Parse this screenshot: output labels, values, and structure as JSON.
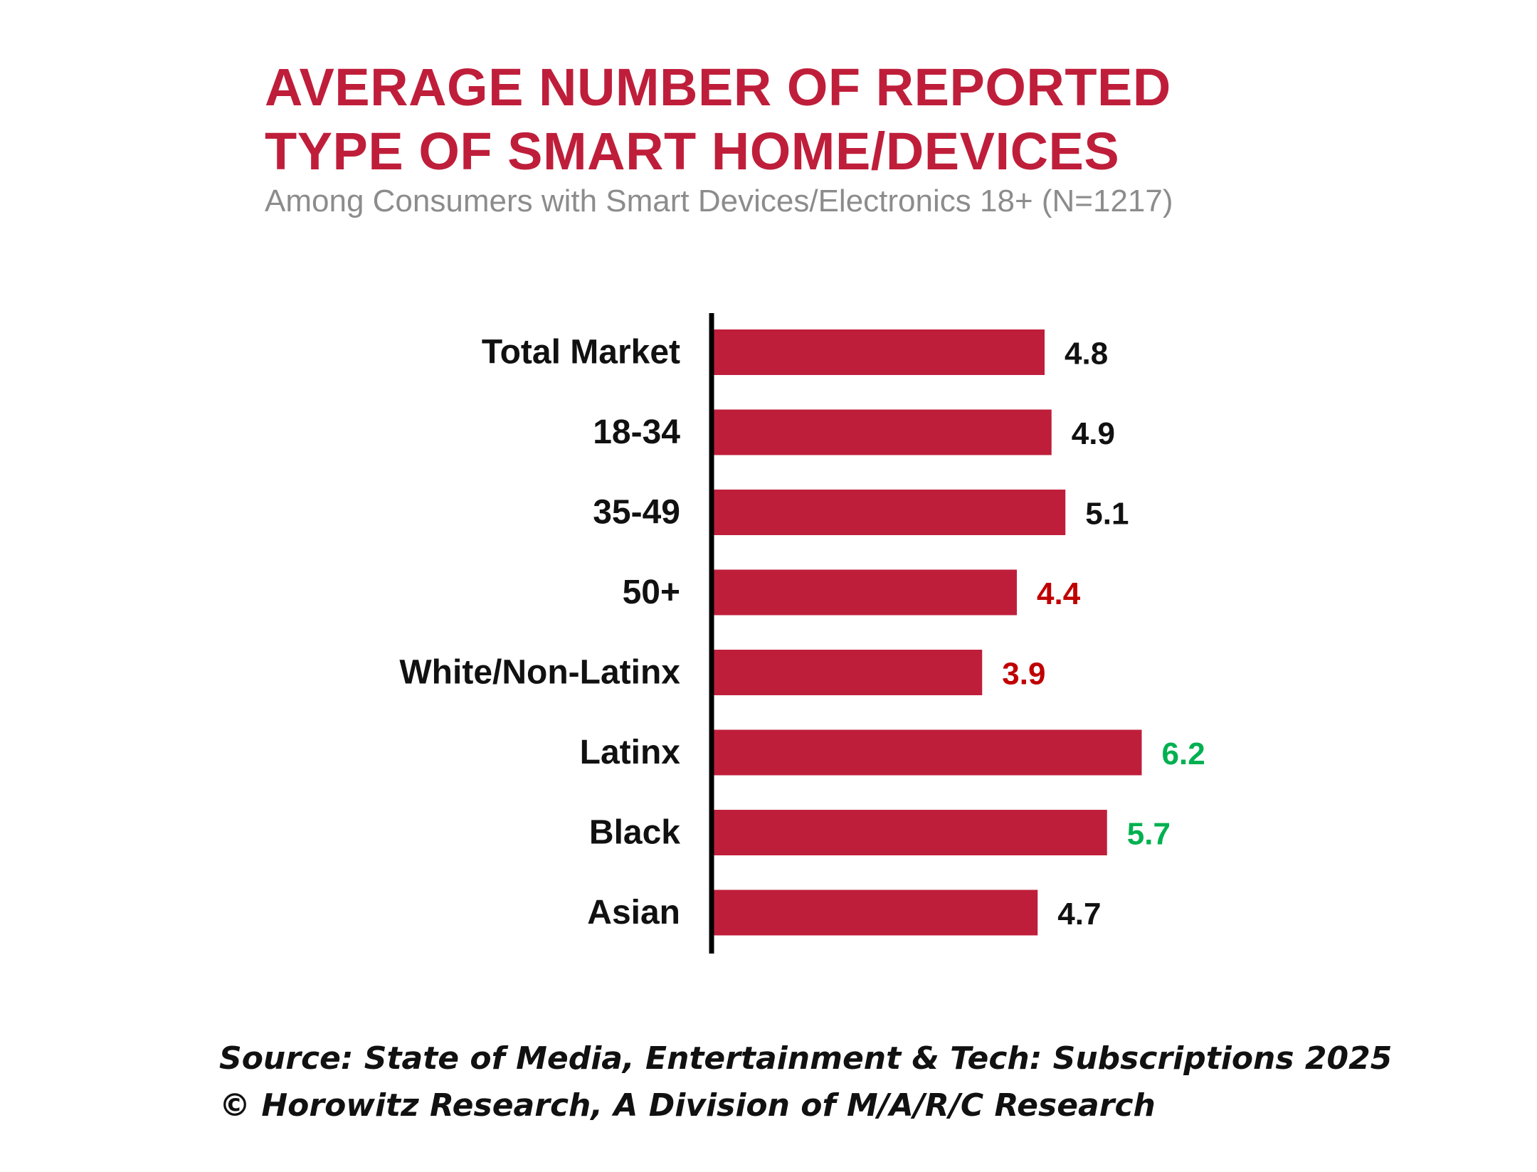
{
  "header": {
    "title_line1": "AVERAGE NUMBER OF REPORTED",
    "title_line2": "TYPE OF SMART HOME/DEVICES",
    "subtitle": "Among Consumers with Smart Devices/Electronics 18+ (N=1217)"
  },
  "chart_data": {
    "type": "bar",
    "orientation": "horizontal",
    "categories": [
      "Total Market",
      "18-34",
      "35-49",
      "50+",
      "White/Non-Latinx",
      "Latinx",
      "Black",
      "Asian"
    ],
    "values": [
      4.8,
      4.9,
      5.1,
      4.4,
      3.9,
      6.2,
      5.7,
      4.7
    ],
    "data_labels": [
      "4.8",
      "4.9",
      "5.1",
      "4.4",
      "3.9",
      "6.2",
      "5.7",
      "4.7"
    ],
    "label_colors": [
      "#111111",
      "#111111",
      "#111111",
      "#c00000",
      "#c00000",
      "#00b050",
      "#00b050",
      "#111111"
    ],
    "bar_color": "#bf1e3a",
    "xlim": [
      0,
      7
    ],
    "grid": false,
    "legend": "none"
  },
  "footer": {
    "source_line1": "Source: State of Media, Entertainment & Tech: Subscriptions 2025",
    "source_line2": "© Horowitz Research, A Division of M/A/R/C Research"
  }
}
